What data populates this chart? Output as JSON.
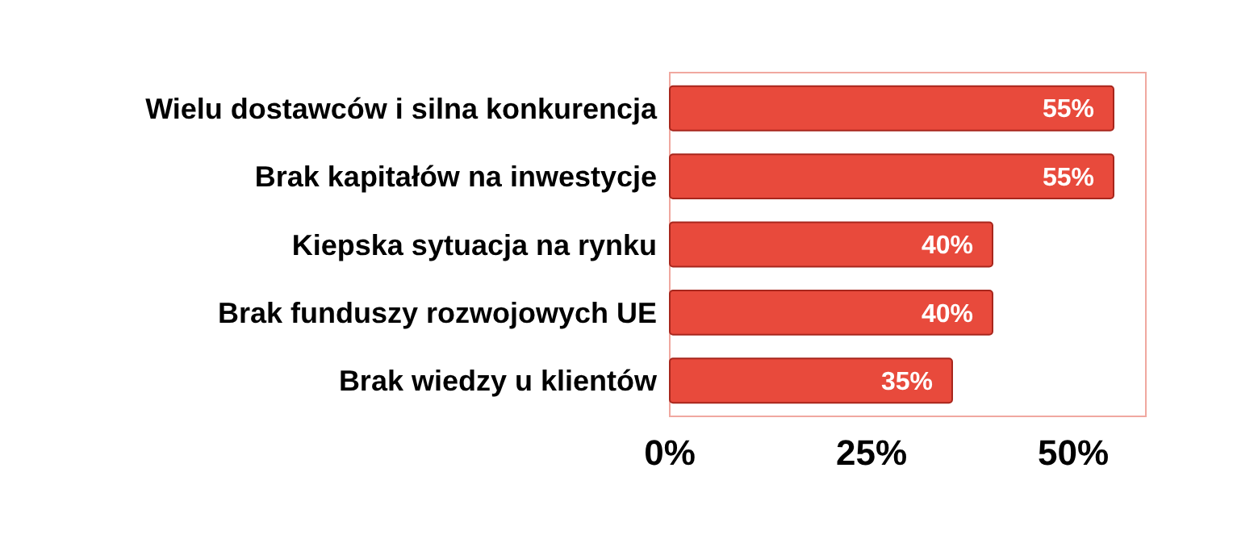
{
  "chart_data": {
    "type": "bar",
    "orientation": "horizontal",
    "categories": [
      "Wielu dostawców i silna konkurencja",
      "Brak kapitałów na inwestycje",
      "Kiepska sytuacja na rynku",
      "Brak funduszy rozwojowych UE",
      "Brak wiedzy u klientów"
    ],
    "values": [
      55,
      55,
      40,
      40,
      35
    ],
    "color": "#e84a3c",
    "xlim": [
      0,
      59
    ],
    "xticks": [
      {
        "value": 0,
        "label": "0%"
      },
      {
        "value": 25,
        "label": "25%"
      },
      {
        "value": 50,
        "label": "50%"
      }
    ],
    "value_labels": [
      "55%",
      "55%",
      "40%",
      "40%",
      "35%"
    ],
    "grid": false
  }
}
